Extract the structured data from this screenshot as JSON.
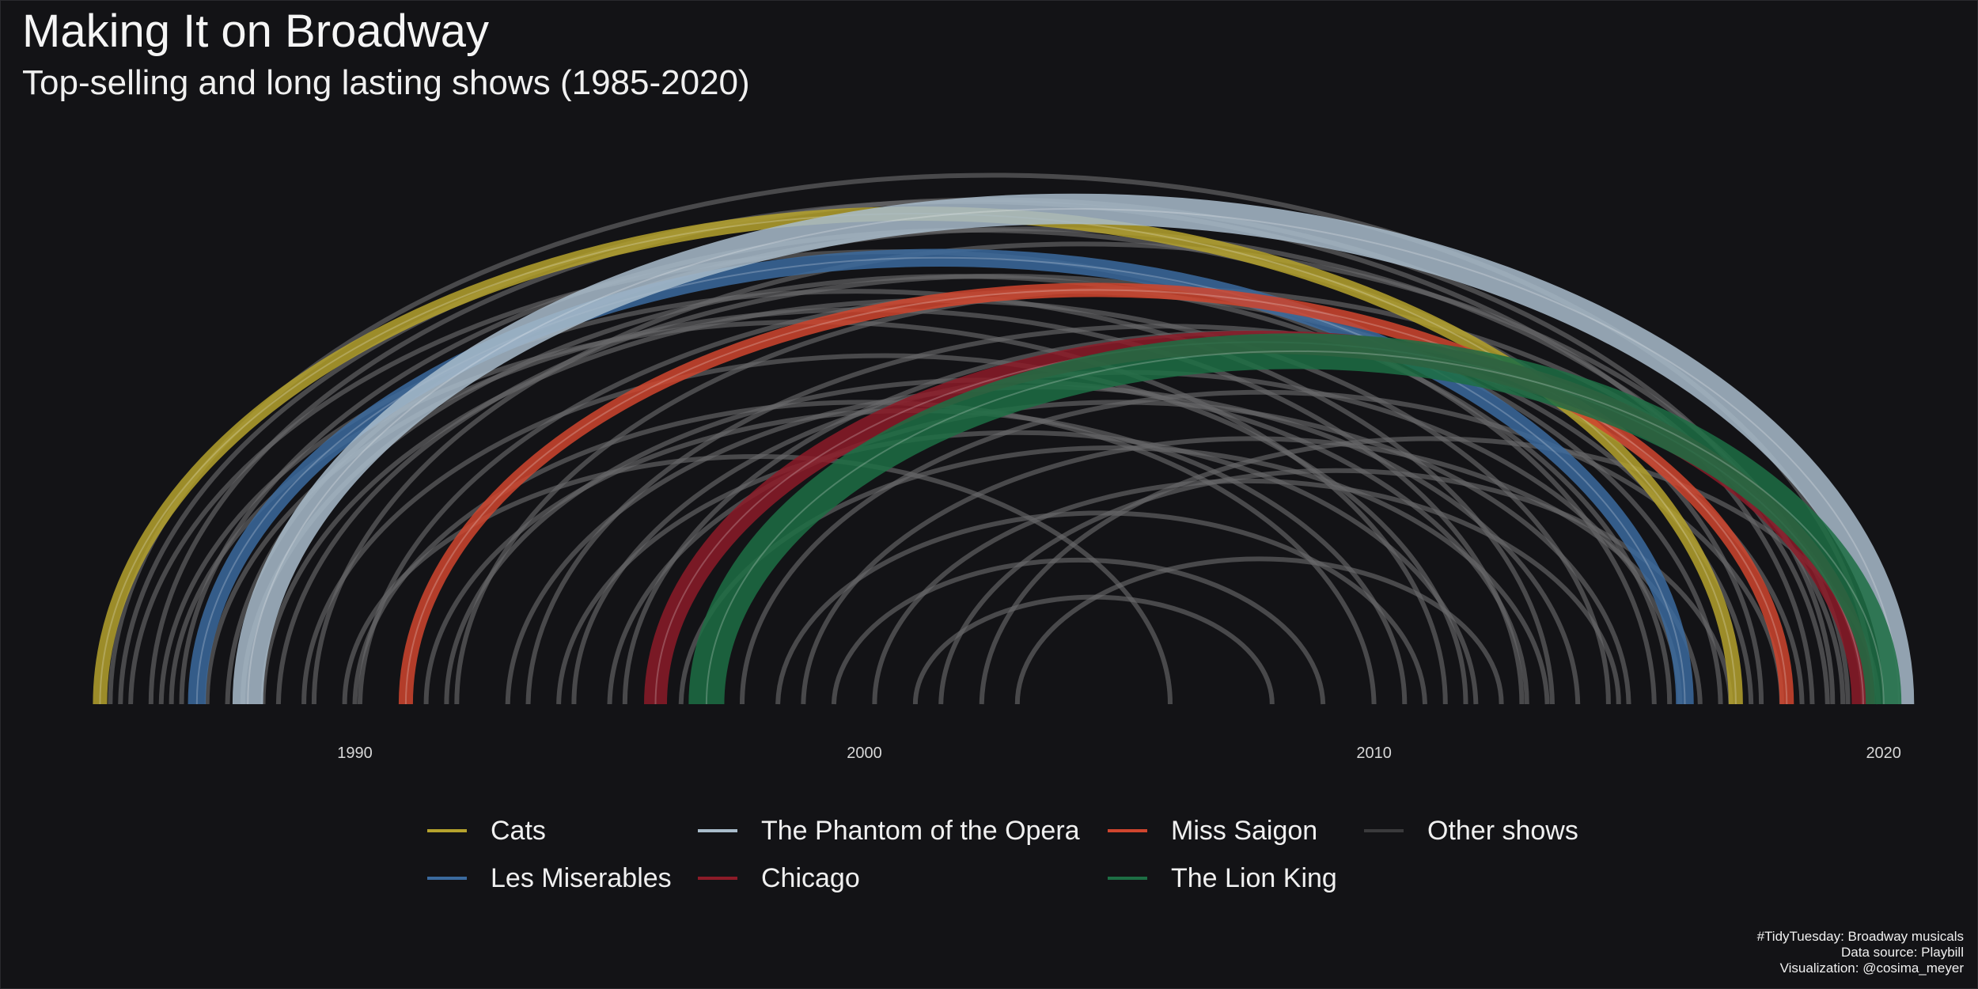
{
  "header": {
    "title": "Making It on Broadway",
    "subtitle": "Top-selling and long lasting shows (1985-2020)"
  },
  "caption": {
    "line1": "#TidyTuesday: Broadway musicals",
    "line2": "Data source: Playbill",
    "line3": "Visualization: @cosima_meyer"
  },
  "legend": {
    "items": [
      {
        "label": "Cats",
        "color": "#b5a22d"
      },
      {
        "label": "The Phantom of the Opera",
        "color": "#a9bccb"
      },
      {
        "label": "Miss Saigon",
        "color": "#d0452e"
      },
      {
        "label": "Other shows",
        "color": "#3a3a3c"
      },
      {
        "label": "Les Miserables",
        "color": "#3b6a9e"
      },
      {
        "label": "Chicago",
        "color": "#8c1b28"
      },
      {
        "label": "The Lion King",
        "color": "#1d6e44"
      }
    ]
  },
  "chart_data": {
    "type": "arc",
    "x_axis": {
      "range": [
        1984.9,
        2020.3
      ],
      "ticks": [
        1990,
        2000,
        2010,
        2020
      ]
    },
    "grid": false,
    "legend_position": "bottom",
    "highlighted": [
      {
        "name": "Cats",
        "start": 1985.0,
        "end": 2017.1,
        "width": 0.28,
        "color": "#b5a22d"
      },
      {
        "name": "Les Miserables",
        "start": 1986.9,
        "end": 2016.1,
        "width": 0.35,
        "color": "#3b6a9e"
      },
      {
        "name": "The Phantom of the Opera",
        "start": 1987.9,
        "end": 2020.3,
        "width": 0.6,
        "color": "#a9bccb"
      },
      {
        "name": "Miss Saigon",
        "start": 1991.0,
        "end": 2018.1,
        "width": 0.28,
        "color": "#d0452e"
      },
      {
        "name": "Chicago",
        "start": 1995.9,
        "end": 2019.6,
        "width": 0.45,
        "color": "#8c1b28"
      },
      {
        "name": "The Lion King",
        "start": 1996.9,
        "end": 2020.0,
        "width": 0.7,
        "color": "#1d6e44"
      }
    ],
    "other_shows": [
      [
        1985.2,
        2019.8
      ],
      [
        1985.4,
        2018.6
      ],
      [
        1985.6,
        2015.5
      ],
      [
        1986.0,
        2019.0
      ],
      [
        1986.2,
        2013.5
      ],
      [
        1986.6,
        2017.6
      ],
      [
        1987.1,
        2012.9
      ],
      [
        1987.5,
        2018.9
      ],
      [
        1988.2,
        2014.6
      ],
      [
        1988.5,
        2016.8
      ],
      [
        1989.0,
        2011.8
      ],
      [
        1989.2,
        2019.3
      ],
      [
        1990.0,
        2010.0
      ],
      [
        1990.1,
        2017.4
      ],
      [
        1991.8,
        2013.0
      ],
      [
        1992.0,
        2019.2
      ],
      [
        1993.0,
        2014.0
      ],
      [
        1993.4,
        2018.4
      ],
      [
        1994.0,
        2012.0
      ],
      [
        1994.3,
        2016.0
      ],
      [
        1995.0,
        2015.0
      ],
      [
        1995.3,
        2019.6
      ],
      [
        1996.4,
        2013.4
      ],
      [
        1997.6,
        2018.0
      ],
      [
        1998.3,
        2011.0
      ],
      [
        1998.8,
        2016.4
      ],
      [
        1999.4,
        2009.0
      ],
      [
        2000.2,
        2014.8
      ],
      [
        2001.0,
        2008.0
      ],
      [
        2001.5,
        2017.0
      ],
      [
        2002.3,
        2019.9
      ],
      [
        2003.0,
        2012.5
      ],
      [
        1989.8,
        2006.0
      ],
      [
        1991.4,
        2010.6
      ],
      [
        1987.8,
        2015.8
      ],
      [
        1986.4,
        2011.4
      ]
    ]
  }
}
